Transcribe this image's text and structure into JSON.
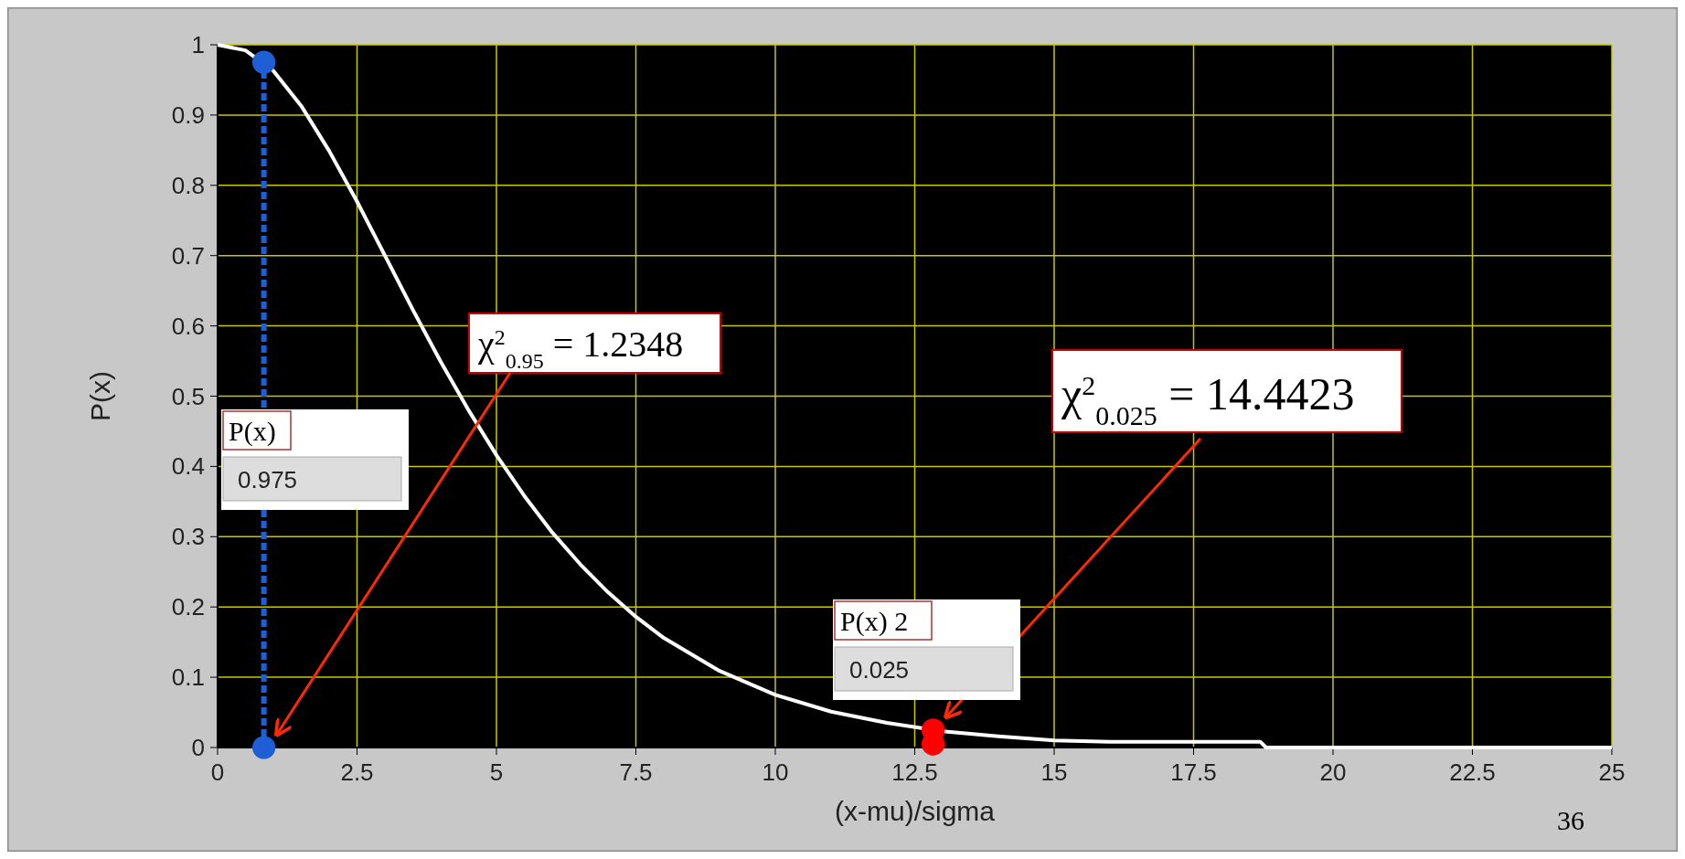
{
  "chart_data": {
    "type": "line",
    "xlabel": "(x-mu)/sigma",
    "ylabel": "P(x)",
    "xlim": [
      0,
      25
    ],
    "ylim": [
      0,
      1
    ],
    "xticks": [
      0,
      2.5,
      5,
      7.5,
      10,
      12.5,
      15,
      17.5,
      20,
      22.5,
      25
    ],
    "yticks": [
      0,
      0.1,
      0.2,
      0.3,
      0.4,
      0.5,
      0.6,
      0.7,
      0.8,
      0.9,
      1
    ],
    "grid": true,
    "series": [
      {
        "color": "#ffffff",
        "x": [
          0,
          0.5,
          1,
          1.5,
          2,
          2.5,
          3,
          3.5,
          4,
          4.5,
          5,
          5.5,
          6,
          6.5,
          7,
          7.5,
          8,
          9,
          10,
          11,
          12,
          13,
          14,
          15,
          16,
          17,
          18,
          18.7,
          18.8,
          25
        ],
        "values": [
          1,
          0.992,
          0.963,
          0.913,
          0.849,
          0.777,
          0.7,
          0.623,
          0.549,
          0.48,
          0.416,
          0.358,
          0.306,
          0.261,
          0.221,
          0.186,
          0.156,
          0.109,
          0.075,
          0.051,
          0.035,
          0.023,
          0.016,
          0.01,
          0.008,
          0.008,
          0.008,
          0.008,
          0,
          0
        ]
      },
      {
        "type": "line",
        "color": "#1f5fd6",
        "line_style": "dashed",
        "x": [
          0.83,
          0.83
        ],
        "values": [
          0,
          0.975
        ]
      },
      {
        "type": "scatter",
        "color": "#1f5fd6",
        "marker": "circle",
        "x": [
          0.83,
          0.83
        ],
        "values": [
          0.975,
          0
        ]
      },
      {
        "type": "scatter",
        "color": "#ff0000",
        "marker": "circle",
        "x": [
          12.83,
          12.83
        ],
        "values": [
          0.025,
          0.005
        ]
      }
    ],
    "annotations": [
      "χ$^{2}$$_{0.95}$ = 1.2348",
      "χ$^{2}$$_{0.025}$ = 14.4423",
      "P(x)",
      "0.975",
      "P(x) 2",
      "0.025",
      "36"
    ]
  }
}
